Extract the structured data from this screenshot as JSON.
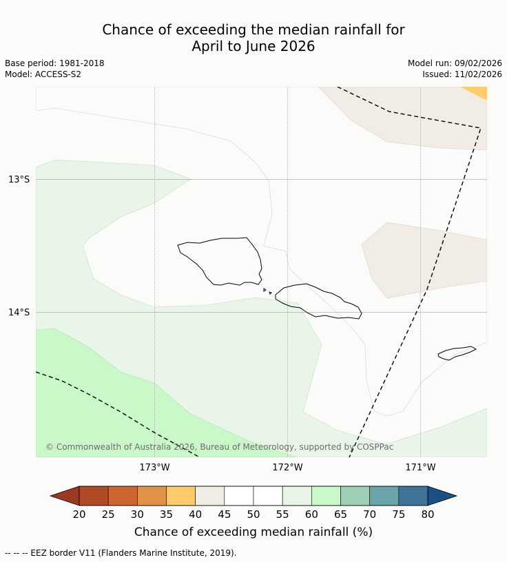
{
  "header": {
    "title_line1": "Chance of exceeding the median rainfall for",
    "title_line2": "April to June 2026",
    "base_period": "Base period: 1981-2018",
    "model": "Model: ACCESS-S2",
    "model_run": "Model run: 09/02/2026",
    "issued": "Issued: 11/02/2026"
  },
  "map": {
    "lat_labels": [
      "13°S",
      "14°S"
    ],
    "lon_labels": [
      "173°W",
      "172°W",
      "171°W"
    ],
    "copyright": "© Commonwealth of Australia 2026, Bureau of Meteorology, supported by COSPPac"
  },
  "colorbar": {
    "ticks": [
      "20",
      "25",
      "30",
      "35",
      "40",
      "45",
      "50",
      "55",
      "60",
      "65",
      "70",
      "75",
      "80"
    ],
    "colors": [
      "#b14a27",
      "#ce6430",
      "#e19347",
      "#fdcb69",
      "#f1ece6",
      "#ffffff",
      "#ffffff",
      "#e9f5e8",
      "#caf9c9",
      "#9dcfb7",
      "#6aa3a8",
      "#3f7397"
    ],
    "under_color": "#9b3a20",
    "over_color": "#1a5185",
    "title": "Chance of exceeding median rainfall (%)"
  },
  "footnote": "-- -- -- EEZ border V11 (Flanders Marine Institute, 2019)."
}
